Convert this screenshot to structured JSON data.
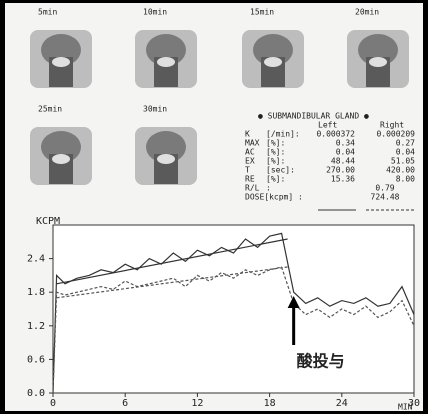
{
  "images": [
    {
      "label": "5min"
    },
    {
      "label": "10min"
    },
    {
      "label": "15min"
    },
    {
      "label": "20min"
    },
    {
      "label": "25min"
    },
    {
      "label": "30min"
    }
  ],
  "table": {
    "title": "● SUBMANDIBULAR GLAND ●",
    "columns": [
      "Left",
      "Right"
    ],
    "rows": [
      [
        "K",
        "[/min]:",
        "0.000372",
        "0.000209"
      ],
      [
        "MAX",
        "[%]:",
        "0.34",
        "0.27"
      ],
      [
        "AC",
        "[%]:",
        "0.04",
        "0.04"
      ],
      [
        "EX",
        "[%]:",
        "48.44",
        "51.05"
      ],
      [
        "T",
        "[sec]:",
        "270.00",
        "420.00"
      ],
      [
        "RE",
        "[%]:",
        "15.36",
        "8.00"
      ],
      [
        "R/L",
        ":",
        "0.79"
      ],
      [
        "DOSE[kcpm]",
        ":",
        "724.48"
      ]
    ]
  },
  "chart_data": {
    "type": "line",
    "ylabel": "KCPM",
    "xlabel": "MIN",
    "annotation": "酸投与",
    "xlim": [
      0,
      30
    ],
    "xticks": [
      0,
      6,
      12,
      18,
      24,
      30
    ],
    "ylim": [
      0,
      3
    ],
    "yticks": [
      {
        "value": 0,
        "label": "0.0"
      },
      0.6,
      1.2,
      1.8,
      2.4
    ],
    "annotation_x": 20,
    "series": [
      {
        "color": "#333",
        "dash": false,
        "x": [
          0,
          0.3,
          1,
          2,
          3,
          4,
          5,
          6,
          7,
          8,
          9,
          10,
          11,
          12,
          13,
          14,
          15,
          16,
          17,
          18,
          19,
          20,
          21,
          22,
          23,
          24,
          25,
          26,
          27,
          28,
          29,
          30
        ],
        "values": [
          0,
          2.1,
          1.95,
          2.05,
          2.1,
          2.2,
          2.15,
          2.3,
          2.2,
          2.4,
          2.3,
          2.5,
          2.35,
          2.55,
          2.45,
          2.6,
          2.5,
          2.75,
          2.6,
          2.8,
          2.85,
          1.8,
          1.6,
          1.7,
          1.55,
          1.65,
          1.6,
          1.7,
          1.55,
          1.6,
          1.9,
          1.4
        ]
      },
      {
        "color": "#555",
        "dash": true,
        "x": [
          0,
          0.3,
          1,
          2,
          3,
          4,
          5,
          6,
          7,
          8,
          9,
          10,
          11,
          12,
          13,
          14,
          15,
          16,
          17,
          18,
          19,
          20,
          21,
          22,
          23,
          24,
          25,
          26,
          27,
          28,
          29,
          30
        ],
        "values": [
          0,
          1.8,
          1.75,
          1.8,
          1.85,
          1.9,
          1.85,
          2.0,
          1.9,
          1.95,
          2.0,
          2.05,
          1.9,
          2.1,
          2.0,
          2.15,
          2.05,
          2.2,
          2.1,
          2.2,
          2.25,
          1.6,
          1.4,
          1.5,
          1.35,
          1.5,
          1.4,
          1.55,
          1.35,
          1.45,
          1.65,
          1.2
        ]
      },
      {
        "color": "#333",
        "dash": false,
        "x": [
          0.3,
          19.5
        ],
        "values": [
          1.95,
          2.75
        ]
      },
      {
        "color": "#555",
        "dash": true,
        "x": [
          0.3,
          19.5
        ],
        "values": [
          1.7,
          2.25
        ]
      }
    ]
  }
}
